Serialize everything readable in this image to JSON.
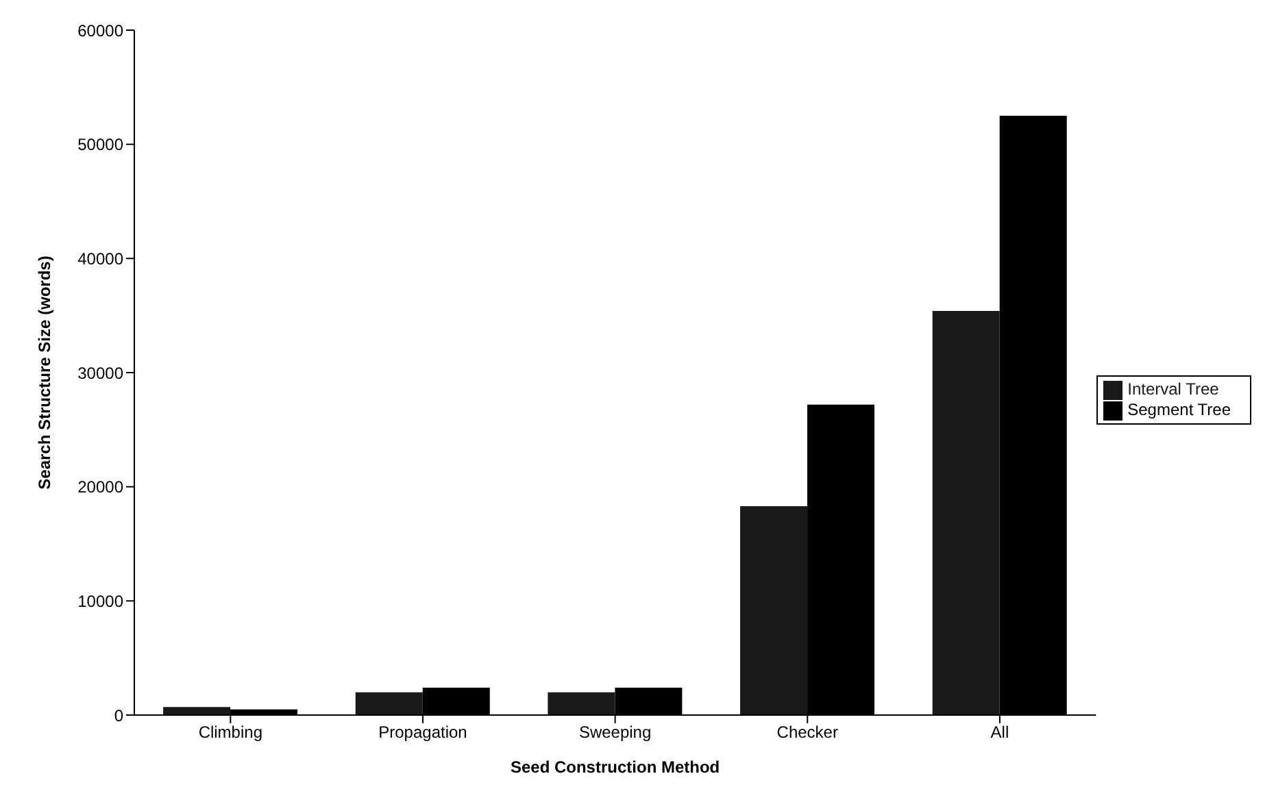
{
  "chart_data": {
    "type": "bar",
    "xlabel": "Seed Construction Method",
    "ylabel": "Search Structure Size (words)",
    "categories": [
      "Climbing",
      "Propagation",
      "Sweeping",
      "Checker",
      "All"
    ],
    "series": [
      {
        "name": "Interval Tree",
        "color": "#1a1a1a",
        "values": [
          700,
          2000,
          2000,
          18300,
          35400
        ]
      },
      {
        "name": "Segment Tree",
        "color": "#000000",
        "values": [
          500,
          2400,
          2400,
          27200,
          52500
        ]
      }
    ],
    "ylim": [
      0,
      60000
    ],
    "yticks": [
      0,
      10000,
      20000,
      30000,
      40000,
      50000,
      60000
    ],
    "grid": false,
    "legend": "right"
  }
}
